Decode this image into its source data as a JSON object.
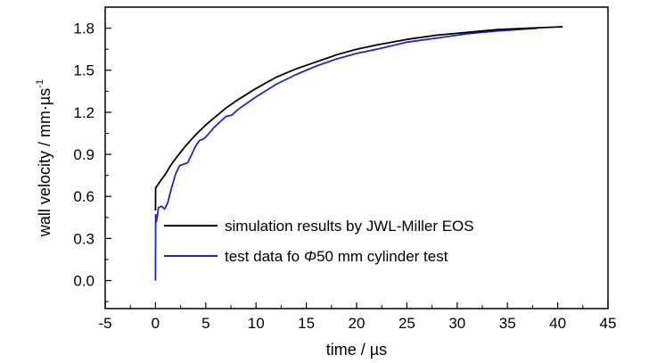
{
  "chart_data": {
    "type": "line",
    "title": "",
    "xlabel": "time / µs",
    "ylabel": "wall velocity / mm·µs",
    "ylabel_superscript": "-1",
    "xlim": [
      -5,
      45
    ],
    "ylim": [
      -0.2,
      1.95
    ],
    "x_ticks": [
      "-5",
      "0",
      "5",
      "10",
      "15",
      "20",
      "25",
      "30",
      "35",
      "40",
      "45"
    ],
    "y_ticks": [
      "0.0",
      "0.3",
      "0.6",
      "0.9",
      "1.2",
      "1.5",
      "1.8"
    ],
    "legend_position": "lower-right inside plot",
    "series": [
      {
        "name": "simulation results by JWL-Miller EOS",
        "color": "#000000",
        "points": [
          [
            0,
            0.5
          ],
          [
            0.02,
            0.66
          ],
          [
            0.5,
            0.71
          ],
          [
            1,
            0.76
          ],
          [
            1.5,
            0.82
          ],
          [
            2,
            0.87
          ],
          [
            3,
            0.96
          ],
          [
            4,
            1.04
          ],
          [
            5,
            1.11
          ],
          [
            6,
            1.17
          ],
          [
            7,
            1.23
          ],
          [
            8,
            1.28
          ],
          [
            10,
            1.37
          ],
          [
            12,
            1.45
          ],
          [
            14,
            1.51
          ],
          [
            16,
            1.56
          ],
          [
            18,
            1.61
          ],
          [
            20,
            1.65
          ],
          [
            22,
            1.68
          ],
          [
            25,
            1.72
          ],
          [
            28,
            1.75
          ],
          [
            31,
            1.77
          ],
          [
            34,
            1.79
          ],
          [
            37,
            1.8
          ],
          [
            40.5,
            1.81
          ]
        ]
      },
      {
        "name": "test data fo Φ50 mm cylinder test",
        "name_parts": {
          "prefix": "test data fo ",
          "symbol": "Φ",
          "suffix": "50 mm cylinder test"
        },
        "color": "#2222cc",
        "points": [
          [
            0,
            0.0
          ],
          [
            0.02,
            0.47
          ],
          [
            0.1,
            0.42
          ],
          [
            0.3,
            0.52
          ],
          [
            0.6,
            0.53
          ],
          [
            0.9,
            0.51
          ],
          [
            1.2,
            0.55
          ],
          [
            1.6,
            0.66
          ],
          [
            2,
            0.76
          ],
          [
            2.4,
            0.82
          ],
          [
            2.8,
            0.83
          ],
          [
            3.2,
            0.84
          ],
          [
            3.6,
            0.9
          ],
          [
            4,
            0.96
          ],
          [
            4.4,
            1.0
          ],
          [
            4.8,
            1.01
          ],
          [
            5.2,
            1.04
          ],
          [
            5.8,
            1.09
          ],
          [
            6.4,
            1.13
          ],
          [
            7,
            1.17
          ],
          [
            7.6,
            1.18
          ],
          [
            8.2,
            1.22
          ],
          [
            9,
            1.26
          ],
          [
            10,
            1.31
          ],
          [
            12,
            1.4
          ],
          [
            14,
            1.47
          ],
          [
            16,
            1.53
          ],
          [
            18,
            1.58
          ],
          [
            20,
            1.62
          ],
          [
            22,
            1.65
          ],
          [
            25,
            1.7
          ],
          [
            28,
            1.73
          ],
          [
            31,
            1.76
          ],
          [
            34,
            1.78
          ],
          [
            36,
            1.79
          ],
          [
            38,
            1.8
          ]
        ]
      }
    ]
  }
}
